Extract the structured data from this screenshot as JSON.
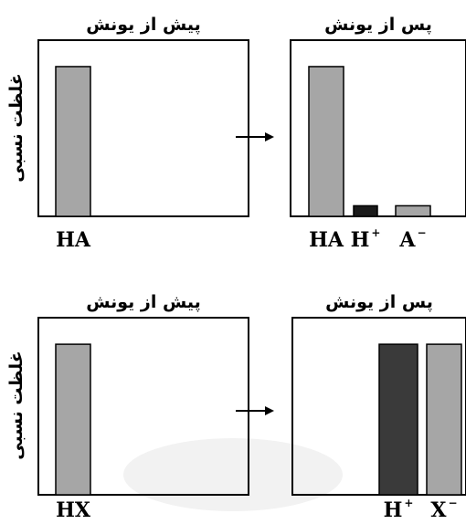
{
  "chart_data": [
    {
      "type": "bar",
      "title": "پیش از یونش",
      "ylabel": "غلظت نسبی",
      "categories": [
        {
          "text": "HA",
          "sup": ""
        }
      ],
      "values": [
        0.85
      ],
      "colors": [
        "#a6a6a6"
      ],
      "ylim": [
        0,
        1
      ],
      "grid": false
    },
    {
      "type": "bar",
      "title": "پس از یونش",
      "ylabel": "",
      "categories": [
        {
          "text": "HA",
          "sup": ""
        },
        {
          "text": "H",
          "sup": "+"
        },
        {
          "text": "A",
          "sup": "−"
        }
      ],
      "values": [
        0.85,
        0.06,
        0.06
      ],
      "colors": [
        "#a6a6a6",
        "#1a1a1a",
        "#a6a6a6"
      ],
      "ylim": [
        0,
        1
      ],
      "grid": false
    },
    {
      "type": "bar",
      "title": "پیش از یونش",
      "ylabel": "غلظت نسبی",
      "categories": [
        {
          "text": "HX",
          "sup": ""
        }
      ],
      "values": [
        0.85
      ],
      "colors": [
        "#a6a6a6"
      ],
      "ylim": [
        0,
        1
      ],
      "grid": false
    },
    {
      "type": "bar",
      "title": "پس از یونش",
      "ylabel": "",
      "categories": [
        {
          "text": "H",
          "sup": "+"
        },
        {
          "text": "X",
          "sup": "−"
        }
      ],
      "values": [
        0.85,
        0.85
      ],
      "colors": [
        "#3a3a3a",
        "#a6a6a6"
      ],
      "ylim": [
        0,
        1
      ],
      "grid": false
    }
  ],
  "arrow_glyph": "→"
}
